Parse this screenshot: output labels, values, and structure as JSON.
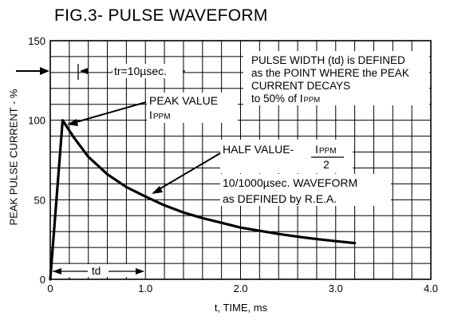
{
  "chart_data": {
    "type": "line",
    "title": "FIG.3- PULSE WAVEFORM",
    "xlabel": "t, TIME, ms",
    "ylabel": "PEAK PULSE CURRENT - %",
    "xlim": [
      0,
      4.0
    ],
    "ylim": [
      0,
      150
    ],
    "x_ticks": [
      "0",
      "1.0",
      "2.0",
      "3.0",
      "4.0"
    ],
    "y_ticks": [
      "0",
      "50",
      "100",
      "150"
    ],
    "grid": true,
    "series": [
      {
        "x": [
          0,
          0.13,
          0.25,
          0.4,
          0.6,
          0.8,
          1.0,
          1.2,
          1.4,
          1.6,
          1.8,
          2.0,
          2.2,
          2.4,
          2.6,
          2.8,
          3.0,
          3.2
        ],
        "values": [
          0,
          100,
          89,
          77,
          66,
          58,
          52,
          46.5,
          42,
          38.5,
          35.5,
          32.5,
          30.5,
          28.5,
          26.8,
          25.3,
          24,
          22.8
        ]
      }
    ],
    "annotations": {
      "rise_time": "tr=10µsec.",
      "definition_lines": [
        "PULSE WIDTH (td) is DEFINED",
        "as the POINT WHERE the PEAK",
        "CURRENT DECAYS",
        "to 50% of I",
        "PPM"
      ],
      "peak_value": "PEAK VALUE",
      "peak_symbol": "I",
      "peak_symbol_sub": "PPM",
      "half_value": "HALF VALUE-",
      "half_num": "I",
      "half_num_sub": "PPM",
      "half_den": "2",
      "waveform_line1": "10/1000µsec. WAVEFORM",
      "waveform_line2": "as DEFINED by R.E.A.",
      "td_label": "td"
    }
  }
}
